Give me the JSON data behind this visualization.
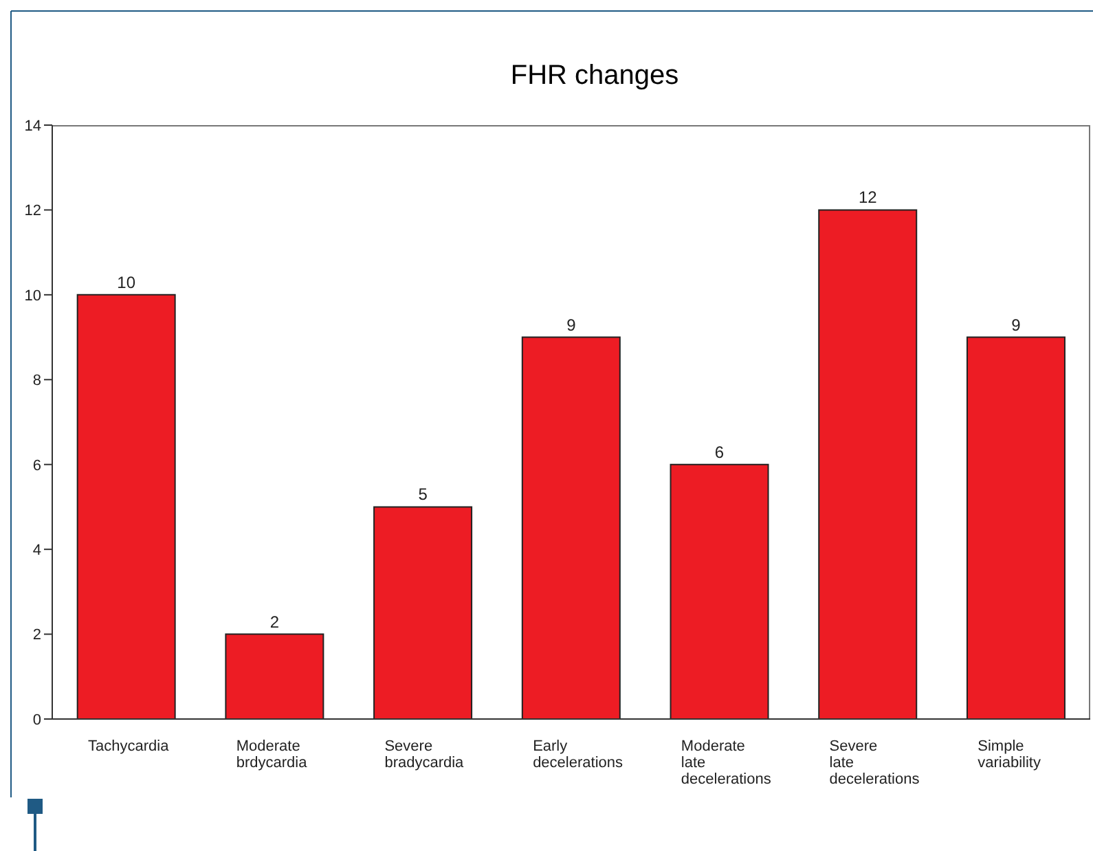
{
  "chart_data": {
    "type": "bar",
    "title": "FHR  changes",
    "categories": [
      "Tachycardia",
      "Moderate brdycardia",
      "Severe bradycardia",
      "Early decelerations",
      "Moderate late decelerations",
      "Severe late decelerations",
      "Simple variability"
    ],
    "values": [
      10,
      2,
      5,
      9,
      6,
      12,
      9
    ],
    "color": "#ed1c24",
    "ylim": [
      0,
      14
    ],
    "yticks": [
      0,
      2,
      4,
      6,
      8,
      10,
      12,
      14
    ],
    "grid": false,
    "data_labels": true
  }
}
